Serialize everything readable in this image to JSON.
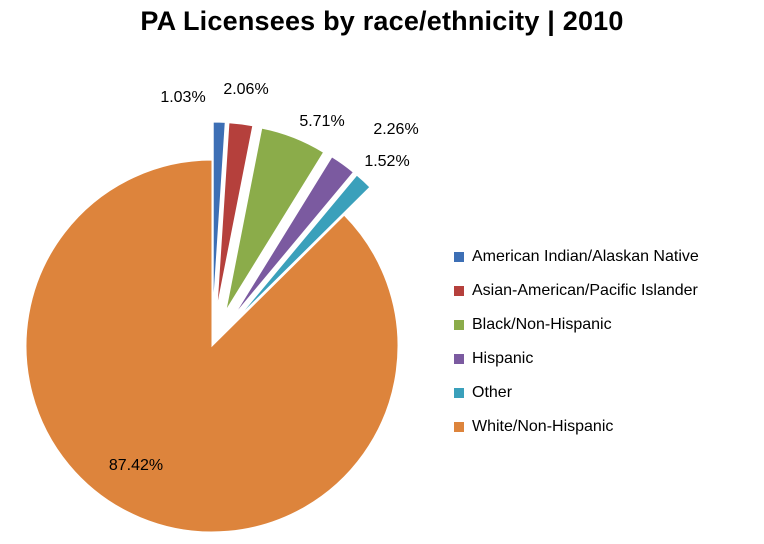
{
  "chart_data": {
    "type": "pie",
    "title": "PA Licensees by race/ethnicity  | 2010",
    "categories": [
      "American Indian/Alaskan Native",
      "Asian-American/Pacific Islander",
      "Black/Non-Hispanic",
      "Hispanic",
      "Other",
      "White/Non-Hispanic"
    ],
    "values": [
      1.03,
      2.06,
      5.71,
      2.26,
      1.52,
      87.42
    ],
    "value_labels": [
      "1.03%",
      "2.06%",
      "5.71%",
      "2.26%",
      "1.52%",
      "87.42%"
    ],
    "colors": [
      "#3d6fb5",
      "#b5403c",
      "#8bac4a",
      "#7b5aa0",
      "#3aa0bb",
      "#dd843c"
    ],
    "exploded": [
      true,
      true,
      true,
      true,
      true,
      false
    ],
    "legend_position": "right"
  }
}
